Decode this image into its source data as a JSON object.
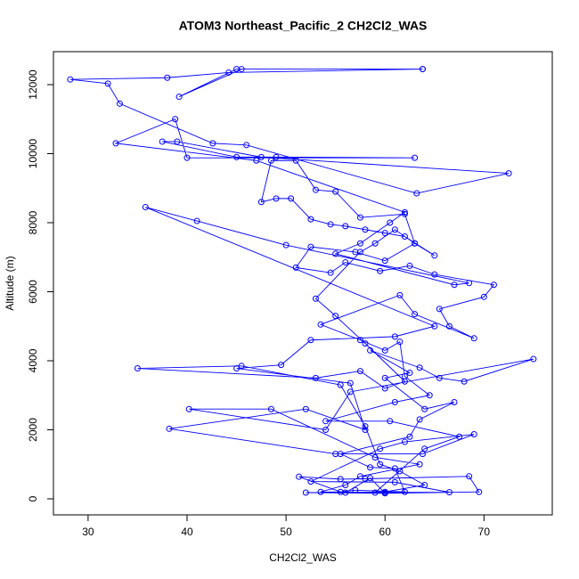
{
  "chart_data": {
    "type": "line-points",
    "title": "ATOM3 Northeast_Pacific_2 CH2Cl2_WAS",
    "x_label": "CH2Cl2_WAS",
    "y_label": "Altitude (m)",
    "color": "#0000ff",
    "xlim": [
      26.5,
      76.9
    ],
    "ylim": [
      -465,
      12955
    ],
    "xticks": [
      30,
      40,
      50,
      60,
      70
    ],
    "yticks": [
      0,
      2000,
      4000,
      6000,
      8000,
      10000,
      12000
    ],
    "grid": false,
    "x": [
      63.8,
      45.0,
      39.2,
      45.5,
      63.8,
      44.2,
      38.0,
      28.2,
      32.0,
      33.2,
      42.6,
      46.0,
      63.2,
      72.5,
      47.5,
      39.0,
      37.5,
      45.0,
      49.0,
      63.0,
      40.0,
      38.8,
      32.8,
      47.0,
      62.0,
      60.5,
      57.5,
      55.0,
      67.0,
      68.5,
      50.0,
      41.0,
      35.8,
      65.0,
      61.0,
      52.5,
      49.5,
      45.0,
      56.5,
      58.0,
      52.0,
      38.2,
      55.0,
      63.8,
      69.0,
      62.0,
      59.5,
      52.5,
      61.0,
      66.5,
      52.0,
      60.0,
      69.5,
      68.5,
      58.0,
      55.5,
      51.3,
      55.5,
      57.0,
      62.0,
      61.0,
      58.5,
      55.5,
      62.5,
      63.5,
      67.0,
      64.0,
      60.0,
      62.5,
      58.5,
      63.5,
      65.5,
      68.0,
      75.0,
      56.5,
      54.0,
      40.2,
      48.5,
      59.0,
      63.5,
      57.5,
      56.0,
      53.5,
      59.0,
      64.0,
      67.5,
      60.5,
      54.0,
      61.0,
      64.5,
      62.0,
      61.5,
      60.0,
      57.5,
      53.5,
      61.5,
      63.0,
      69.0,
      66.5,
      65.5,
      70.0,
      71.0,
      65.0,
      62.5,
      59.5,
      56.0,
      54.5,
      51.0,
      52.5,
      57.0,
      60.0,
      63.0,
      65.0,
      62.0,
      60.0,
      58.0,
      56.0,
      54.5,
      52.5,
      50.5,
      49.0,
      47.5,
      48.5,
      51.0,
      53.0,
      55.0,
      57.5,
      62.0,
      63.0,
      61.0,
      59.0,
      57.5,
      53.0,
      55.0,
      58.0,
      62.0,
      60.0,
      57.5,
      53.0,
      35.0,
      45.5,
      55.5,
      58.0,
      59.5,
      61.5,
      64.0,
      60.0,
      56.0,
      58.5,
      60.0
    ],
    "values": [
      12450,
      12450,
      11650,
      12450,
      12450,
      12350,
      12200,
      12150,
      12030,
      11450,
      10300,
      10250,
      8850,
      9430,
      9900,
      10350,
      10350,
      9900,
      9900,
      9880,
      9880,
      11000,
      10300,
      9800,
      8300,
      8000,
      7400,
      7100,
      6200,
      6250,
      7350,
      8050,
      8450,
      5000,
      4700,
      4600,
      3880,
      3780,
      3350,
      2000,
      2600,
      2030,
      1300,
      1300,
      1870,
      1650,
      1450,
      500,
      480,
      190,
      180,
      160,
      200,
      650,
      580,
      570,
      640,
      200,
      250,
      200,
      880,
      910,
      1300,
      1800,
      2300,
      2800,
      2600,
      3500,
      3650,
      4300,
      3800,
      3500,
      3400,
      4050,
      3100,
      2000,
      2600,
      2600,
      1200,
      1000,
      650,
      400,
      200,
      180,
      1450,
      1800,
      2250,
      2250,
      2800,
      3000,
      3550,
      4550,
      4300,
      4600,
      5050,
      5900,
      5350,
      4650,
      5000,
      5500,
      5850,
      6200,
      6500,
      6750,
      6600,
      6850,
      6550,
      6700,
      7300,
      7150,
      6900,
      7400,
      7050,
      7600,
      7700,
      7800,
      7900,
      7950,
      8100,
      8700,
      8700,
      8600,
      9800,
      9800,
      8950,
      8900,
      8150,
      8250,
      7400,
      7800,
      7400,
      7150,
      5800,
      5300,
      4500,
      3400,
      3200,
      3700,
      3500,
      3780,
      3850,
      3300,
      2100,
      1000,
      800,
      400,
      200,
      180,
      600,
      170
    ]
  }
}
